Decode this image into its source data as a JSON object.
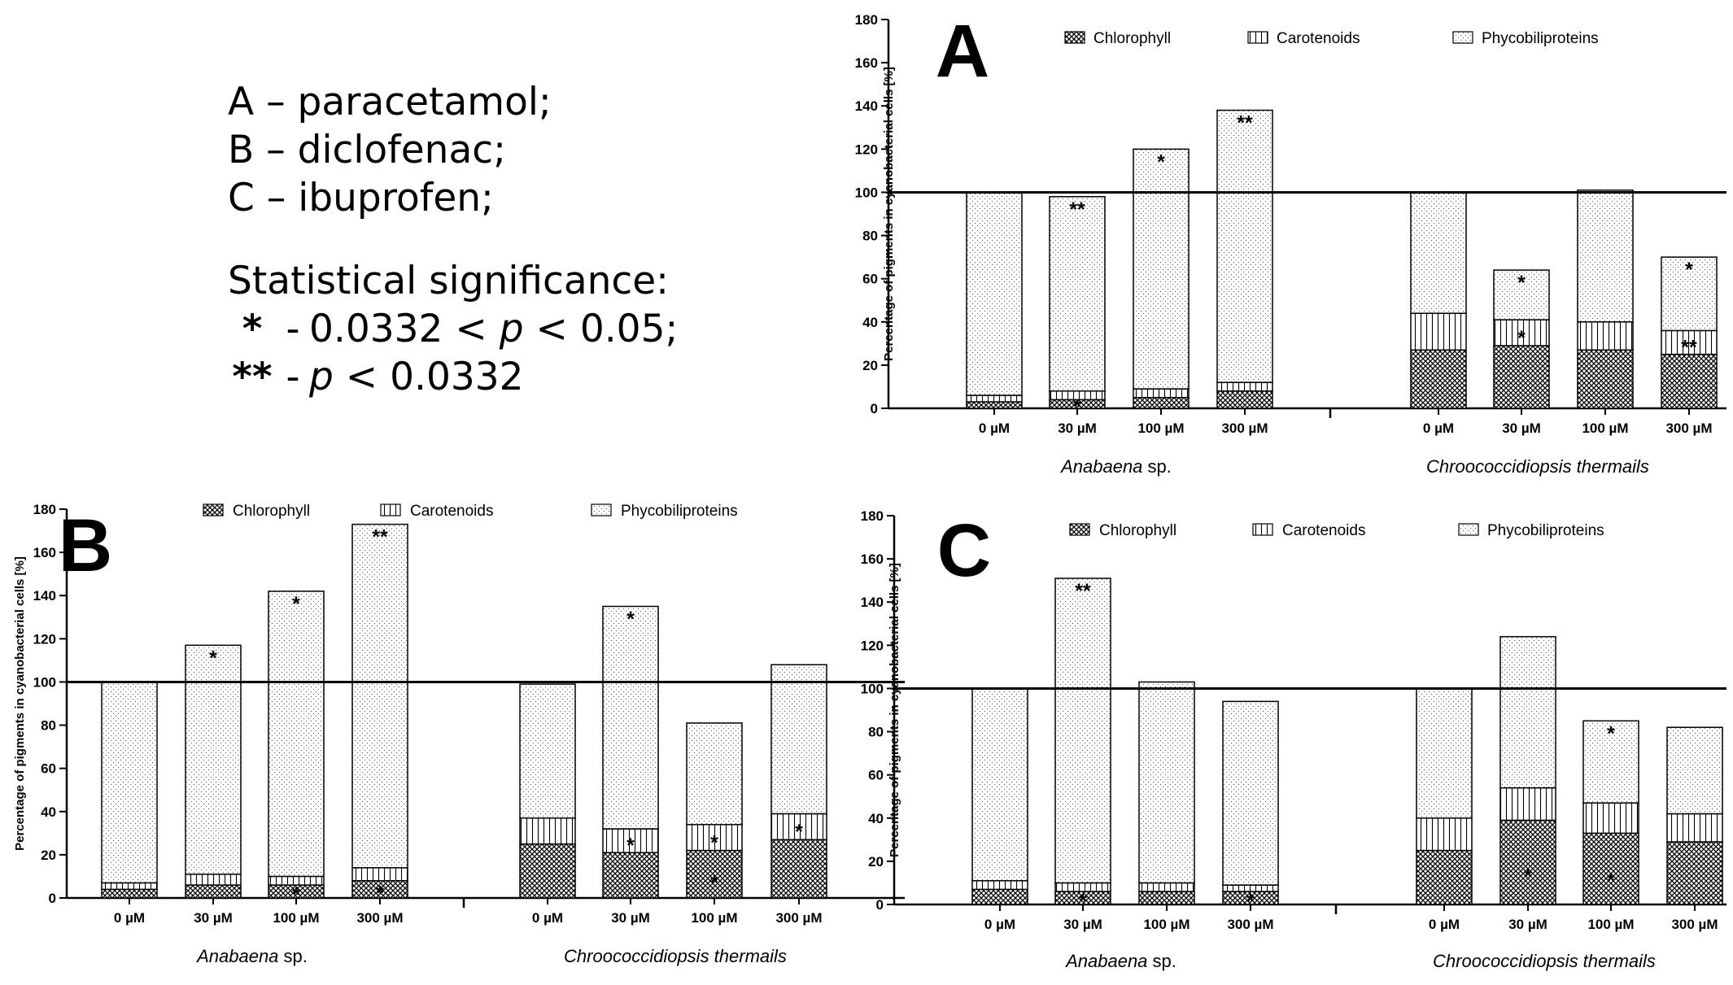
{
  "key": {
    "lines": [
      {
        "letter": "A",
        "text": "paracetamol;"
      },
      {
        "letter": "B",
        "text": "diclofenac;"
      },
      {
        "letter": "C",
        "text": "ibuprofen;"
      }
    ],
    "significance_title": "Statistical significance:",
    "sig1_symbol": "*",
    "sig1_text": "0.0332 < p < 0.05;",
    "sig2_symbol": "**",
    "sig2_text": "p < 0.0332",
    "dash": "-"
  },
  "chart_data": [
    {
      "panel": "A",
      "type": "bar",
      "stacked": true,
      "ylabel": "Percentage of pigments in cyanobacterial cells [%]",
      "ylim": [
        0,
        180
      ],
      "yticks": [
        0,
        20,
        40,
        60,
        80,
        100,
        120,
        140,
        160,
        180
      ],
      "reference_line": 100,
      "legend": [
        "Chlorophyll",
        "Carotenoids",
        "Phycobiliproteins"
      ],
      "groups": [
        {
          "name": "Anabaena",
          "suffix": " sp.",
          "categories": [
            "0 µM",
            "30 µM",
            "100 µM",
            "300 µM"
          ]
        },
        {
          "name": "Chroococcidiopsis thermails",
          "suffix": "",
          "categories": [
            "0 µM",
            "30 µM",
            "100 µM",
            "300 µM"
          ]
        }
      ],
      "series": [
        {
          "name": "Chlorophyll",
          "values": [
            3,
            4,
            5,
            8,
            27,
            29,
            27,
            25
          ]
        },
        {
          "name": "Carotenoids",
          "values": [
            3,
            4,
            4,
            4,
            17,
            12,
            13,
            11
          ]
        },
        {
          "name": "Phycobiliproteins",
          "values": [
            94,
            90,
            111,
            126,
            56,
            23,
            61,
            34
          ]
        }
      ],
      "annotations": [
        {
          "bar": 1,
          "series": 0,
          "text": "*"
        },
        {
          "bar": 1,
          "series": 2,
          "text": "**"
        },
        {
          "bar": 2,
          "series": 2,
          "text": "*"
        },
        {
          "bar": 3,
          "series": 2,
          "text": "**"
        },
        {
          "bar": 5,
          "series": 1,
          "text": "*"
        },
        {
          "bar": 5,
          "series": 2,
          "text": "*"
        },
        {
          "bar": 7,
          "series": 1,
          "text": "**"
        },
        {
          "bar": 7,
          "series": 2,
          "text": "*"
        }
      ]
    },
    {
      "panel": "B",
      "type": "bar",
      "stacked": true,
      "ylabel": "Percentage of pigments in cyanobacterial cells [%]",
      "ylim": [
        0,
        180
      ],
      "yticks": [
        0,
        20,
        40,
        60,
        80,
        100,
        120,
        140,
        160,
        180
      ],
      "reference_line": 100,
      "legend": [
        "Chlorophyll",
        "Carotenoids",
        "Phycobiliproteins"
      ],
      "groups": [
        {
          "name": "Anabaena",
          "suffix": " sp.",
          "categories": [
            "0 µM",
            "30 µM",
            "100 µM",
            "300 µM"
          ]
        },
        {
          "name": "Chroococcidiopsis thermails",
          "suffix": "",
          "categories": [
            "0 µM",
            "30 µM",
            "100 µM",
            "300 µM"
          ]
        }
      ],
      "series": [
        {
          "name": "Chlorophyll",
          "values": [
            4,
            6,
            6,
            8,
            25,
            21,
            22,
            27
          ]
        },
        {
          "name": "Carotenoids",
          "values": [
            3,
            5,
            4,
            6,
            12,
            11,
            12,
            12
          ]
        },
        {
          "name": "Phycobiliproteins",
          "values": [
            93,
            106,
            132,
            159,
            62,
            103,
            47,
            69
          ]
        }
      ],
      "annotations": [
        {
          "bar": 1,
          "series": 2,
          "text": "*"
        },
        {
          "bar": 2,
          "series": 0,
          "text": "*"
        },
        {
          "bar": 2,
          "series": 2,
          "text": "*"
        },
        {
          "bar": 3,
          "series": 0,
          "text": "*"
        },
        {
          "bar": 3,
          "series": 2,
          "text": "**"
        },
        {
          "bar": 5,
          "series": 1,
          "text": "*"
        },
        {
          "bar": 5,
          "series": 2,
          "text": "*"
        },
        {
          "bar": 6,
          "series": 0,
          "text": "*"
        },
        {
          "bar": 6,
          "series": 1,
          "text": "*"
        },
        {
          "bar": 7,
          "series": 1,
          "text": "*"
        }
      ]
    },
    {
      "panel": "C",
      "type": "bar",
      "stacked": true,
      "ylabel": "Percentage of pigments in cyanobacterial cells [%]",
      "ylim": [
        0,
        180
      ],
      "yticks": [
        0,
        20,
        40,
        60,
        80,
        100,
        120,
        140,
        160,
        180
      ],
      "reference_line": 100,
      "legend": [
        "Chlorophyll",
        "Carotenoids",
        "Phycobiliproteins"
      ],
      "groups": [
        {
          "name": "Anabaena",
          "suffix": " sp.",
          "categories": [
            "0 µM",
            "30 µM",
            "100 µM",
            "300 µM"
          ]
        },
        {
          "name": "Chroococcidiopsis thermails",
          "suffix": "",
          "categories": [
            "0 µM",
            "30 µM",
            "100 µM",
            "300 µM"
          ]
        }
      ],
      "series": [
        {
          "name": "Chlorophyll",
          "values": [
            7,
            6,
            6,
            6,
            25,
            39,
            33,
            29
          ]
        },
        {
          "name": "Carotenoids",
          "values": [
            4,
            4,
            4,
            3,
            15,
            15,
            14,
            13
          ]
        },
        {
          "name": "Phycobiliproteins",
          "values": [
            89,
            141,
            93,
            85,
            60,
            70,
            38,
            40
          ]
        }
      ],
      "annotations": [
        {
          "bar": 1,
          "series": 0,
          "text": "*"
        },
        {
          "bar": 1,
          "series": 2,
          "text": "**"
        },
        {
          "bar": 3,
          "series": 0,
          "text": "*"
        },
        {
          "bar": 5,
          "series": 0,
          "text": "*"
        },
        {
          "bar": 6,
          "series": 0,
          "text": "*"
        },
        {
          "bar": 6,
          "series": 2,
          "text": "*"
        }
      ]
    }
  ]
}
